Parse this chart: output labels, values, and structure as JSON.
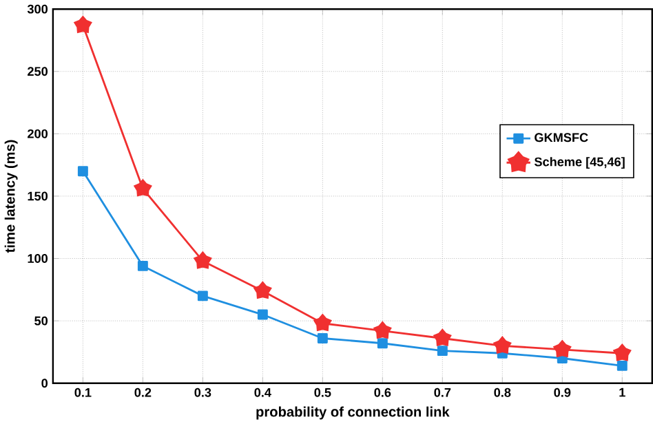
{
  "chart_data": {
    "type": "line",
    "xlabel": "probability of connection link",
    "ylabel": "time latency (ms)",
    "x": [
      0.1,
      0.2,
      0.3,
      0.4,
      0.5,
      0.6,
      0.7,
      0.8,
      0.9,
      1
    ],
    "series": [
      {
        "name": "GKMSFC",
        "color": "#1f8fe0",
        "marker": "square",
        "values": [
          170,
          94,
          70,
          55,
          36,
          32,
          26,
          24,
          20,
          14
        ]
      },
      {
        "name": "Scheme [45,46]",
        "color": "#f03030",
        "marker": "star",
        "values": [
          287,
          156,
          98,
          74,
          48,
          42,
          36,
          30,
          27,
          24
        ]
      }
    ],
    "xlim": [
      0.05,
      1.05
    ],
    "xticks": [
      0.1,
      0.2,
      0.3,
      0.4,
      0.5,
      0.6,
      0.7,
      0.8,
      0.9,
      1
    ],
    "ylim": [
      0,
      300
    ],
    "yticks": [
      0,
      50,
      100,
      150,
      200,
      250,
      300
    ],
    "grid": true,
    "legend": "right",
    "line_style": "solid"
  }
}
